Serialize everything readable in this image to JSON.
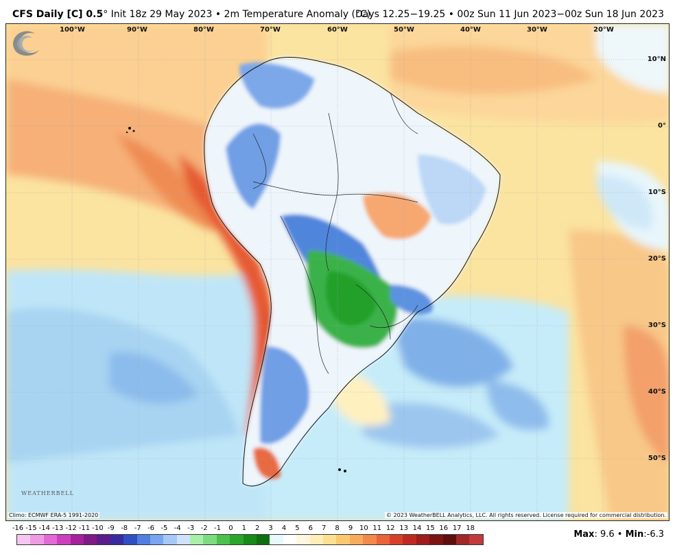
{
  "header": {
    "title_bold": "CFS Daily [C] 0.5",
    "title_rest": "° Init 18z 29 May 2023 • 2m Temperature Anomaly (°C)",
    "valid_range": "Days 12.25−19.25 • 00z Sun 11 Jun 2023−00z Sun 18 Jun 2023"
  },
  "map": {
    "lon_labels": [
      "100°W",
      "90°W",
      "80°W",
      "70°W",
      "60°W",
      "50°W",
      "40°W",
      "30°W",
      "20°W"
    ],
    "lat_labels": [
      "10°N",
      "0°",
      "10°S",
      "20°S",
      "30°S",
      "40°S",
      "50°S"
    ]
  },
  "logo": {
    "text": "WEATHERBELL"
  },
  "footer": {
    "climo": "Climo: ECMWF ERA-5 1991-2020",
    "copyright": "© 2023 WeatherBELL Analytics, LLC. All rights reserved. License required for commercial distribution."
  },
  "colorbar": {
    "labels": [
      "-16",
      "-15",
      "-14",
      "-13",
      "-12",
      "-11",
      "-10",
      "-9",
      "-8",
      "-7",
      "-6",
      "-5",
      "-4",
      "-3",
      "-2",
      "-1",
      "0",
      "1",
      "2",
      "3",
      "4",
      "5",
      "6",
      "7",
      "8",
      "9",
      "10",
      "11",
      "12",
      "13",
      "14",
      "15",
      "16",
      "17",
      "18"
    ],
    "colors": [
      "#f7c6f0",
      "#ef9be3",
      "#e36ad6",
      "#cc3fbf",
      "#a6219c",
      "#7f1a86",
      "#5b1d8a",
      "#3a2aa0",
      "#2f4fc2",
      "#4f7fe0",
      "#7aa6ef",
      "#a7c8f6",
      "#cfe2fb",
      "#a8f0a8",
      "#7ddc7d",
      "#4cc24c",
      "#2aa62a",
      "#178a17",
      "#0f6e0f",
      "#e8f8ff",
      "#ffffff",
      "#fff7e0",
      "#ffeeb8",
      "#fde08f",
      "#fbc86e",
      "#f8ac5a",
      "#f3894a",
      "#ea6438",
      "#d9402a",
      "#bf2a20",
      "#9e1c1c",
      "#7d1414",
      "#5e0e0e",
      "#a02828",
      "#c23a3a"
    ]
  },
  "stats": {
    "max_label": "Max",
    "max_value": "9.6",
    "min_label": "Min",
    "min_value": "-6.3"
  }
}
